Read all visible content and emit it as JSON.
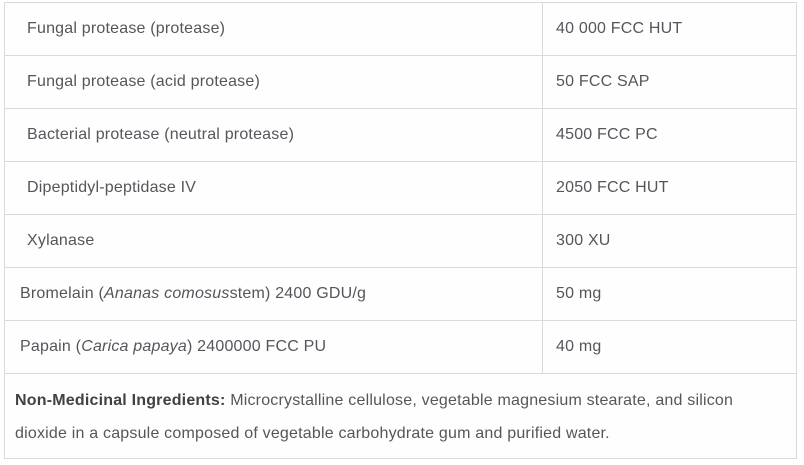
{
  "table": {
    "rows": [
      {
        "name_prefix": "Fungal protease (protease)",
        "name_italic": "",
        "name_suffix": "",
        "value": "40 000 FCC HUT"
      },
      {
        "name_prefix": "Fungal protease (acid protease)",
        "name_italic": "",
        "name_suffix": "",
        "value": "50 FCC SAP"
      },
      {
        "name_prefix": "Bacterial protease (neutral protease)",
        "name_italic": "",
        "name_suffix": "",
        "value": "4500 FCC PC"
      },
      {
        "name_prefix": "Dipeptidyl-peptidase IV",
        "name_italic": "",
        "name_suffix": "",
        "value": "2050 FCC HUT"
      },
      {
        "name_prefix": "Xylanase",
        "name_italic": "",
        "name_suffix": "",
        "value": "300 XU"
      },
      {
        "name_prefix": "Bromelain (",
        "name_italic": "Ananas comosus",
        "name_suffix": " stem) 2400 GDU/g",
        "value": "50 mg"
      },
      {
        "name_prefix": "Papain (",
        "name_italic": "Carica papaya",
        "name_suffix": ") 2400000 FCC PU",
        "value": "40 mg"
      }
    ]
  },
  "footer": {
    "label": "Non-Medicinal Ingredients:",
    "text": " Microcrystalline cellulose, vegetable magnesium stearate, and silicon dioxide in a capsule composed of vegetable carbohydrate gum and purified water."
  },
  "colors": {
    "border": "#d8d9da",
    "text": "#54565b",
    "background": "#fefefe"
  }
}
